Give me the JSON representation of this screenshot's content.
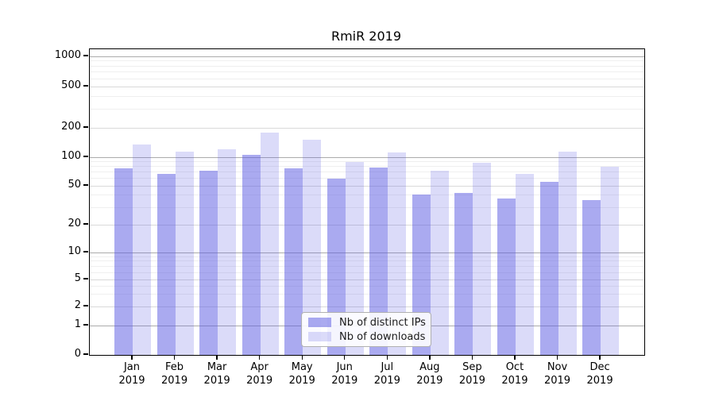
{
  "title": "RmiR 2019",
  "chart_data": {
    "type": "bar",
    "title": "RmiR 2019",
    "categories": [
      "Jan",
      "Feb",
      "Mar",
      "Apr",
      "May",
      "Jun",
      "Jul",
      "Aug",
      "Sep",
      "Oct",
      "Nov",
      "Dec"
    ],
    "year_label": "2019",
    "series": [
      {
        "name": "Nb of distinct IPs",
        "values": [
          77,
          67,
          72,
          105,
          77,
          60,
          78,
          41,
          42,
          37,
          55,
          36
        ],
        "color": "rgba(92,92,226,0.52)"
      },
      {
        "name": "Nb of downloads",
        "values": [
          135,
          114,
          120,
          180,
          150,
          89,
          112,
          72,
          88,
          67,
          115,
          79
        ],
        "color": "rgba(92,92,226,0.22)"
      }
    ],
    "xlabel": "",
    "ylabel": "",
    "yscale": "symlog",
    "ylim": [
      0,
      1000
    ],
    "yticks": [
      0,
      1,
      2,
      5,
      10,
      20,
      50,
      100,
      200,
      500,
      1000
    ],
    "ytick_labels": [
      "0",
      "1",
      "2",
      "5",
      "10",
      "20",
      "50",
      "100",
      "200",
      "500",
      "1000"
    ],
    "grid": true,
    "legend_position": "lower center"
  },
  "legend": {
    "items": [
      {
        "label": "Nb of distinct IPs"
      },
      {
        "label": "Nb of downloads"
      }
    ]
  },
  "colors": {
    "bar_dark": "rgba(92,92,226,0.52)",
    "bar_light": "rgba(92,92,226,0.22)",
    "grid_decade": "#ababab",
    "grid_mid": "#d9d9d9",
    "grid_minor": "#efefef",
    "axis": "#000000",
    "background": "#ffffff"
  }
}
